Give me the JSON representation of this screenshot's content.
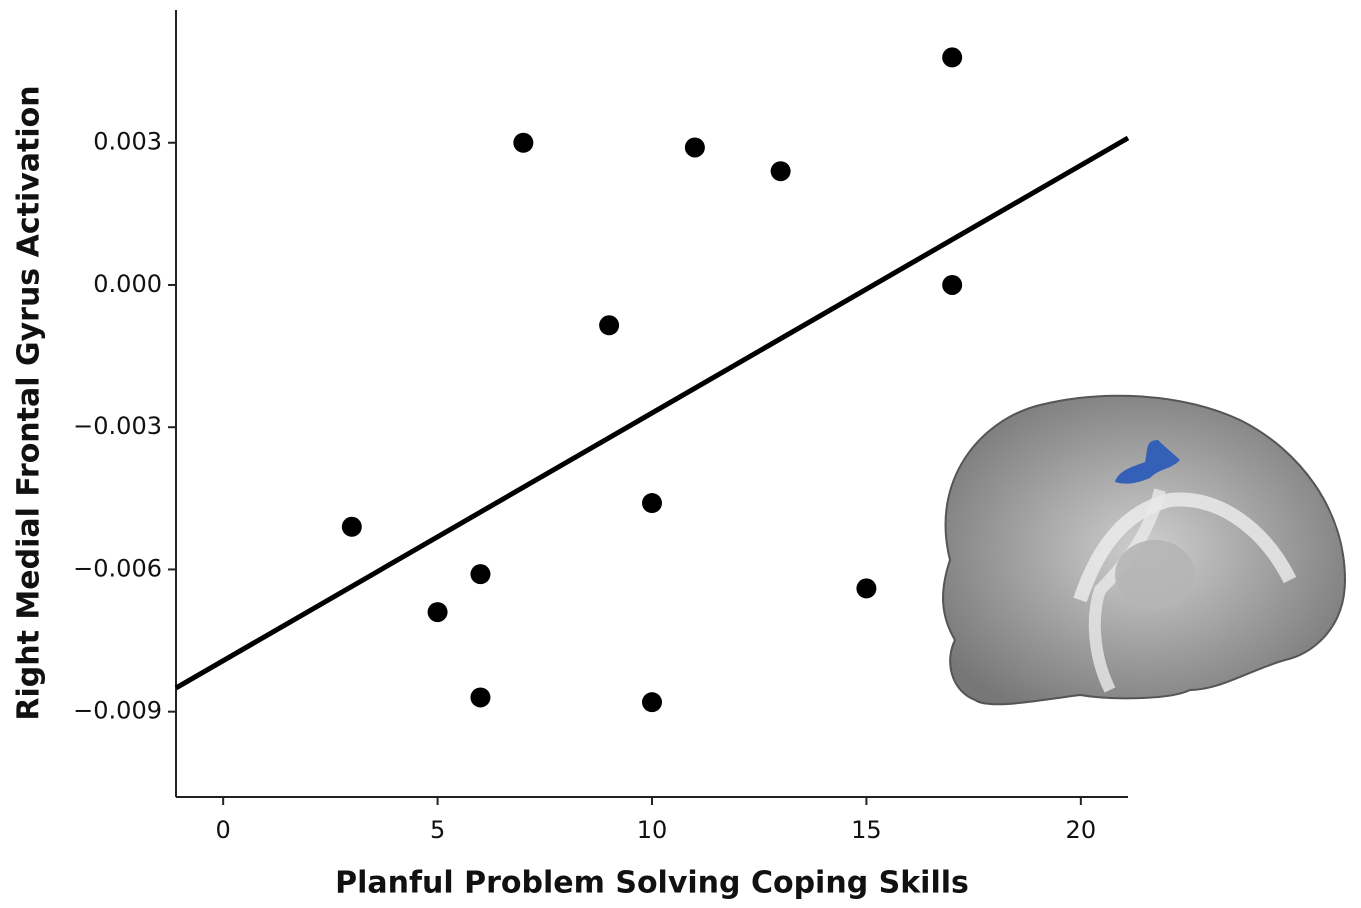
{
  "chart_data": {
    "type": "scatter",
    "x_label": "Planful Problem Solving Coping Skills",
    "y_label": "Right Medial Frontal Gyrus Activation",
    "x": [
      3,
      5,
      6,
      6,
      7,
      9,
      10,
      10,
      11,
      13,
      15,
      17,
      17
    ],
    "values": [
      -0.0051,
      -0.0069,
      -0.0061,
      -0.0087,
      0.003,
      -0.00085,
      -0.0046,
      -0.0088,
      0.0029,
      0.0024,
      -0.0064,
      0.0048,
      0.0
    ],
    "color": "#000000",
    "fit_line": {
      "x": [
        -1.1,
        21.1
      ],
      "values": [
        -0.0085,
        0.0031
      ],
      "color": "#000000"
    },
    "xlim": [
      -1.1,
      21.1
    ],
    "ylim": [
      -0.0108,
      0.0058
    ],
    "xticks": [
      0,
      5,
      10,
      15,
      20
    ],
    "yticks": [
      0.003,
      {
        "value": 0,
        "label": "0.000"
      },
      {
        "value": -0.003,
        "label": "−0.003"
      },
      {
        "value": -0.006,
        "label": "−0.006"
      },
      {
        "value": -0.009,
        "label": "−0.009"
      }
    ],
    "grid": false
  }
}
